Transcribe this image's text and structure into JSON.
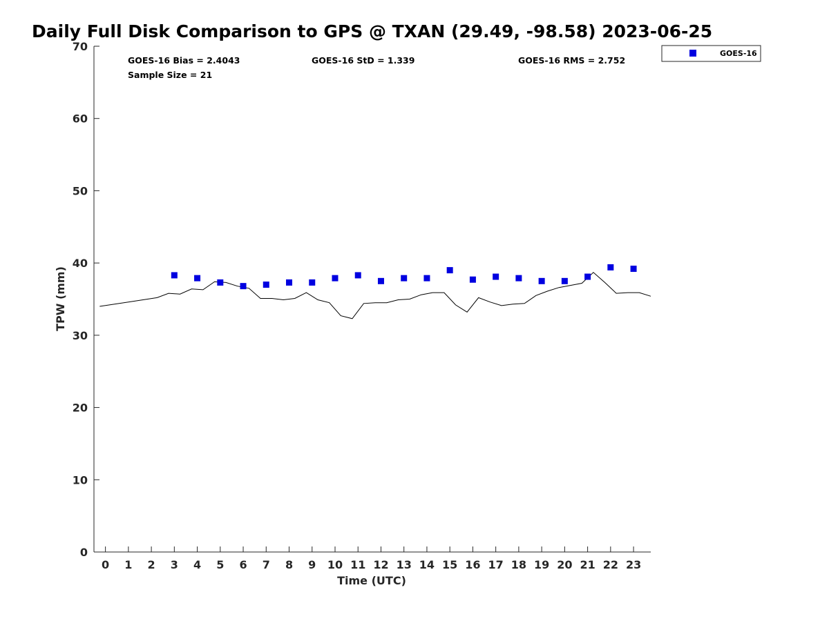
{
  "chart_data": {
    "type": "scatter",
    "title": "Daily Full Disk Comparison to GPS @ TXAN (29.49, -98.58) 2023-06-25",
    "xlabel": "Time (UTC)",
    "ylabel": "TPW (mm)",
    "xlim": [
      -0.5,
      23.75
    ],
    "ylim": [
      0,
      70
    ],
    "x_ticks": [
      "0",
      "1",
      "2",
      "3",
      "4",
      "5",
      "6",
      "7",
      "8",
      "9",
      "10",
      "11",
      "12",
      "13",
      "14",
      "15",
      "16",
      "17",
      "18",
      "19",
      "20",
      "21",
      "22",
      "23"
    ],
    "y_ticks": [
      "0",
      "10",
      "20",
      "30",
      "40",
      "50",
      "60",
      "70"
    ],
    "grid": false,
    "legend": {
      "position": "outside-top-right",
      "entries": [
        "GOES-16"
      ]
    },
    "stats": {
      "bias": "GOES-16 Bias = 2.4043",
      "std": "GOES-16 StD = 1.339",
      "rms": "GOES-16 RMS = 2.752",
      "sample": "Sample Size = 21"
    },
    "series": [
      {
        "name": "GOES-16",
        "kind": "scatter",
        "marker": "square",
        "color": "#0000e0",
        "points": [
          [
            3,
            38.3
          ],
          [
            4,
            37.9
          ],
          [
            5,
            37.3
          ],
          [
            6,
            36.8
          ],
          [
            7,
            37.0
          ],
          [
            8,
            37.3
          ],
          [
            9,
            37.3
          ],
          [
            10,
            37.9
          ],
          [
            11,
            38.3
          ],
          [
            12,
            37.5
          ],
          [
            13,
            37.9
          ],
          [
            14,
            37.9
          ],
          [
            15,
            39.0
          ],
          [
            16,
            37.7
          ],
          [
            17,
            38.1
          ],
          [
            18,
            37.9
          ],
          [
            19,
            37.5
          ],
          [
            20,
            37.5
          ],
          [
            21,
            38.1
          ],
          [
            22,
            39.4
          ],
          [
            23,
            39.2
          ]
        ]
      },
      {
        "kind": "line",
        "color": "#000000",
        "points": [
          [
            -0.25,
            34.0
          ],
          [
            1,
            34.6
          ],
          [
            2.25,
            35.2
          ],
          [
            2.75,
            35.8
          ],
          [
            3.25,
            35.7
          ],
          [
            3.75,
            36.4
          ],
          [
            4.25,
            36.3
          ],
          [
            4.75,
            37.4
          ],
          [
            5.25,
            37.3
          ],
          [
            5.75,
            36.8
          ],
          [
            6.25,
            36.5
          ],
          [
            6.75,
            35.1
          ],
          [
            7.25,
            35.1
          ],
          [
            7.75,
            34.9
          ],
          [
            8.25,
            35.1
          ],
          [
            8.75,
            35.9
          ],
          [
            9.25,
            34.9
          ],
          [
            9.75,
            34.5
          ],
          [
            10.25,
            32.7
          ],
          [
            10.75,
            32.3
          ],
          [
            11.25,
            34.4
          ],
          [
            11.75,
            34.5
          ],
          [
            12.25,
            34.5
          ],
          [
            12.75,
            34.9
          ],
          [
            13.25,
            35.0
          ],
          [
            13.75,
            35.6
          ],
          [
            14.25,
            35.9
          ],
          [
            14.75,
            35.9
          ],
          [
            15.25,
            34.2
          ],
          [
            15.75,
            33.2
          ],
          [
            16.25,
            35.2
          ],
          [
            16.75,
            34.6
          ],
          [
            17.25,
            34.1
          ],
          [
            17.75,
            34.3
          ],
          [
            18.25,
            34.4
          ],
          [
            18.75,
            35.5
          ],
          [
            19.25,
            36.1
          ],
          [
            19.75,
            36.6
          ],
          [
            20.25,
            36.9
          ],
          [
            20.75,
            37.2
          ],
          [
            21.25,
            38.7
          ],
          [
            21.75,
            37.3
          ],
          [
            22.25,
            35.8
          ],
          [
            22.75,
            35.9
          ],
          [
            23.25,
            35.9
          ],
          [
            23.75,
            35.4
          ]
        ]
      }
    ]
  }
}
